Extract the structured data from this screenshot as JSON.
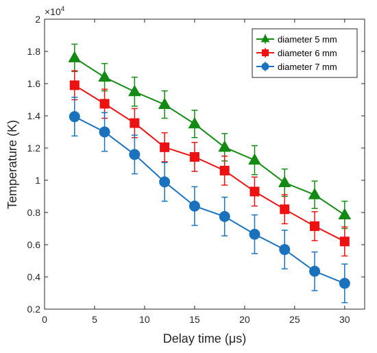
{
  "chart_data": {
    "type": "line",
    "xlabel": "Delay time (μs)",
    "ylabel": "Temperature (K)",
    "xlim": [
      0,
      32
    ],
    "ylim": [
      0.2,
      2.0
    ],
    "xticks": [
      0,
      5,
      10,
      15,
      20,
      25,
      30
    ],
    "xtick_labels": [
      "0",
      "5",
      "10",
      "15",
      "20",
      "25",
      "30"
    ],
    "yticks": [
      0.2,
      0.4,
      0.6,
      0.8,
      1.0,
      1.2,
      1.4,
      1.6,
      1.8,
      2.0
    ],
    "ytick_labels": [
      "0.2",
      "0.4",
      "0.6",
      "0.8",
      "1",
      "1.2",
      "1.4",
      "1.6",
      "1.8",
      "2"
    ],
    "y_multiplier_base": "×10",
    "y_multiplier_exp": "4",
    "grid": false,
    "legend_position": "top-right",
    "x": [
      3,
      6,
      9,
      12,
      15,
      18,
      21,
      24,
      27,
      30
    ],
    "series": [
      {
        "name": "diameter 5 mm",
        "color": "#138a13",
        "marker": "triangle",
        "values": [
          1.76,
          1.64,
          1.55,
          1.47,
          1.35,
          1.205,
          1.125,
          0.985,
          0.91,
          0.785
        ],
        "errors": [
          0.085,
          0.085,
          0.09,
          0.085,
          0.085,
          0.085,
          0.09,
          0.085,
          0.085,
          0.085
        ]
      },
      {
        "name": "diameter 6 mm",
        "color": "#ee1111",
        "marker": "square",
        "values": [
          1.59,
          1.475,
          1.355,
          1.205,
          1.145,
          1.06,
          0.93,
          0.82,
          0.715,
          0.62
        ],
        "errors": [
          0.09,
          0.09,
          0.09,
          0.09,
          0.09,
          0.09,
          0.09,
          0.09,
          0.09,
          0.09
        ]
      },
      {
        "name": "diameter 7 mm",
        "color": "#1a72bd",
        "marker": "circle",
        "values": [
          1.395,
          1.3,
          1.16,
          0.99,
          0.84,
          0.775,
          0.665,
          0.57,
          0.435,
          0.36
        ],
        "errors": [
          0.12,
          0.12,
          0.12,
          0.12,
          0.12,
          0.12,
          0.12,
          0.12,
          0.12,
          0.12
        ]
      }
    ]
  }
}
